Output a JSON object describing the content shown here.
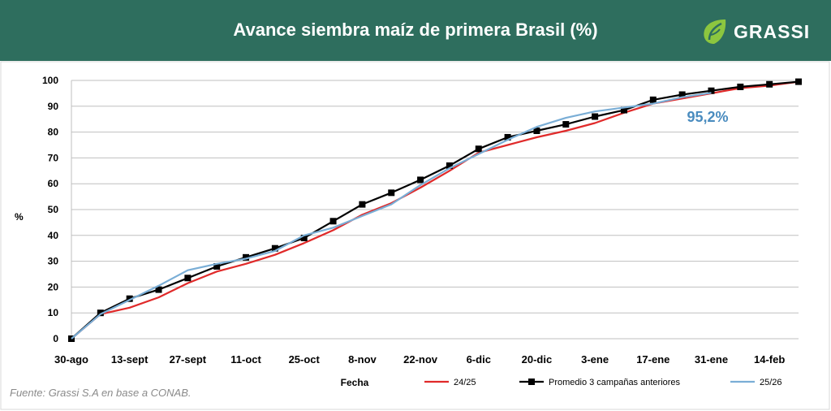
{
  "header": {
    "title": "Avance siembra maíz de primera Brasil (%)",
    "logo_text": "GRASSI",
    "background": "#2e6e5e"
  },
  "source_note": "Fuente: Grassi S.A en base a CONAB.",
  "chart_data": {
    "type": "line",
    "title": "Avance siembra maíz de primera Brasil (%)",
    "xlabel": "Fecha",
    "ylabel": "%",
    "ylim": [
      0,
      100
    ],
    "yticks": [
      0,
      10,
      20,
      30,
      40,
      50,
      60,
      70,
      80,
      90,
      100
    ],
    "grid": "horizontal",
    "legend_position": "bottom",
    "x_tick_labels": [
      "30-ago",
      "13-sept",
      "27-sept",
      "11-oct",
      "25-oct",
      "8-nov",
      "22-nov",
      "6-dic",
      "20-dic",
      "3-ene",
      "17-ene",
      "31-ene",
      "14-feb"
    ],
    "annotation": {
      "text": "95,2%",
      "color": "#4a8cbf"
    },
    "series": [
      {
        "name": "24/25",
        "color": "#e02a2a",
        "marker": "none",
        "values": [
          0,
          9.5,
          12,
          16,
          21.5,
          26,
          29,
          32.5,
          37,
          42,
          48,
          52.5,
          58.5,
          65,
          72,
          75,
          78,
          80.5,
          83.5,
          87.5,
          91,
          93,
          95,
          97,
          98,
          99.5
        ]
      },
      {
        "name": "Promedio 3 campañas anteriores",
        "color": "#000000",
        "marker": "square",
        "values": [
          0,
          10,
          15.5,
          19,
          23.5,
          28,
          31.5,
          35,
          39,
          45.5,
          52,
          56.5,
          61.5,
          67,
          73.5,
          78,
          80.5,
          83,
          86,
          88.5,
          92.5,
          94.5,
          96,
          97.5,
          98.5,
          99.5
        ]
      },
      {
        "name": "25/26",
        "color": "#7aaed6",
        "marker": "none",
        "values": [
          0,
          9.5,
          15,
          20.5,
          26.5,
          29,
          31,
          34,
          40,
          43,
          47.5,
          52,
          59.5,
          66,
          71.5,
          77,
          82,
          85.5,
          88,
          89.5,
          91,
          93.5,
          95.2
        ]
      }
    ]
  }
}
